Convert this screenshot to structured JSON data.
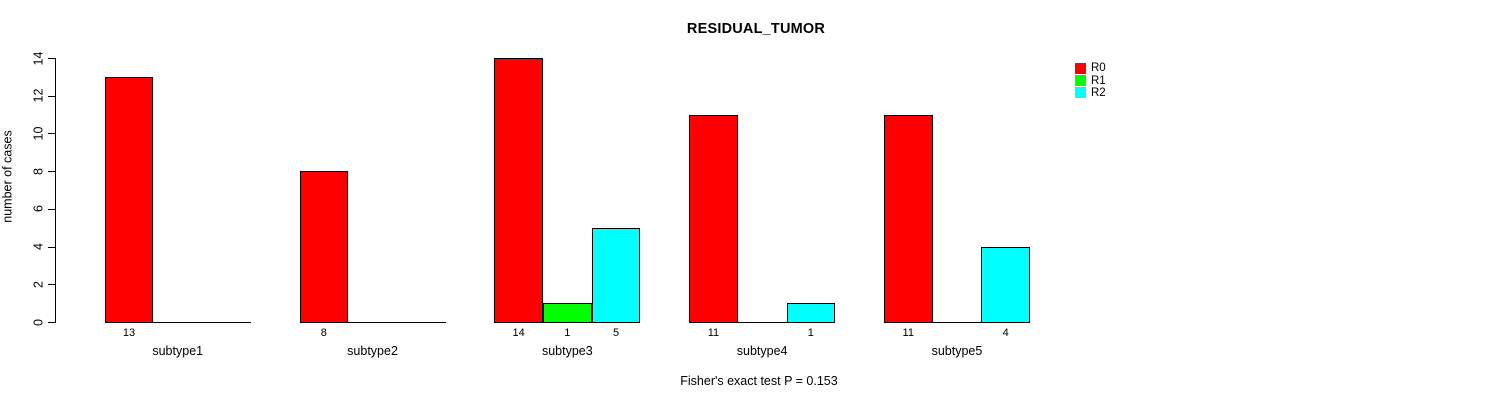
{
  "chart_data": {
    "type": "bar",
    "title": "RESIDUAL_TUMOR",
    "ylabel": "number of cases",
    "xlabel": "",
    "categories": [
      "subtype1",
      "subtype2",
      "subtype3",
      "subtype4",
      "subtype5"
    ],
    "series": [
      {
        "name": "R0",
        "color": "#FF0000",
        "values": [
          13,
          8,
          14,
          11,
          11
        ]
      },
      {
        "name": "R1",
        "color": "#00FF00",
        "values": [
          0,
          0,
          1,
          0,
          0
        ]
      },
      {
        "name": "R2",
        "color": "#00FFFF",
        "values": [
          0,
          0,
          5,
          1,
          4
        ]
      }
    ],
    "ylim": [
      0,
      14
    ],
    "yticks": [
      0,
      2,
      4,
      6,
      8,
      10,
      12,
      14
    ],
    "grid": false,
    "legend_position": "top-right",
    "bar_value_labels": "nonzero values shown below each bar",
    "caption": "Fisher's exact test P = 0.153"
  },
  "colors": {
    "axis": "#000000",
    "background": "#FFFFFF"
  }
}
